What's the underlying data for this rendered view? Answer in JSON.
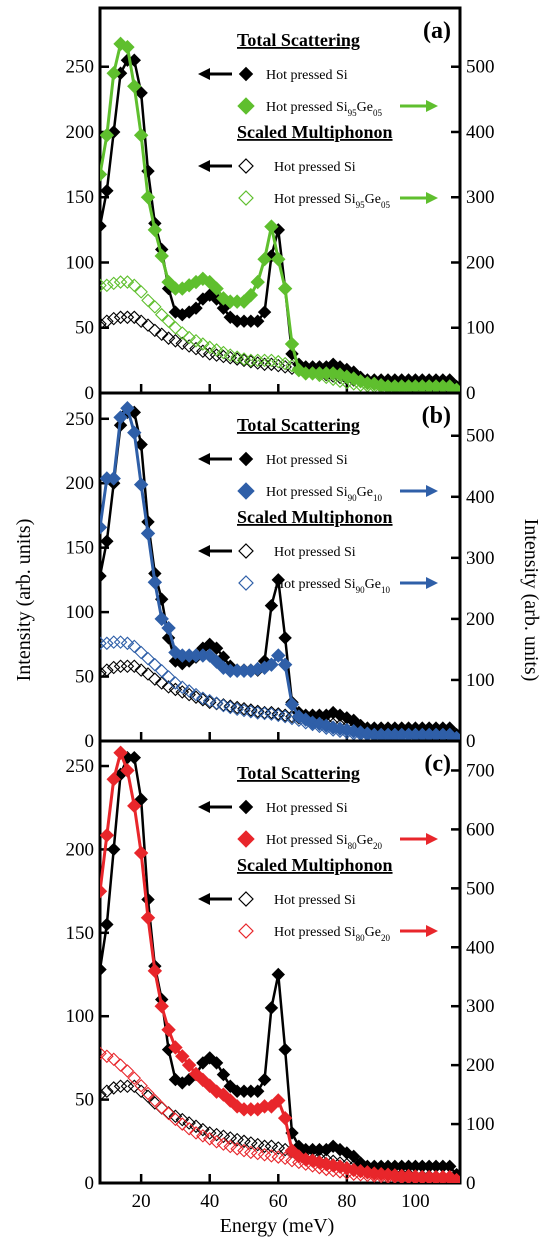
{
  "chart_data": {
    "type": "line",
    "xlabel": "Energy (meV)",
    "ylabel_left": "Intensity (arb. units)",
    "ylabel_right": "Intensity (arb. units)",
    "xlim": [
      8,
      113
    ],
    "x_ticks": [
      20,
      40,
      60,
      80,
      100
    ],
    "shared_series": {
      "si_total": {
        "name": "Hot pressed Si",
        "x": [
          8,
          10,
          12,
          14,
          16,
          18,
          20,
          22,
          24,
          26,
          28,
          30,
          32,
          34,
          36,
          38,
          40,
          42,
          44,
          46,
          48,
          50,
          52,
          54,
          56,
          58,
          60,
          62,
          64,
          66,
          68,
          70,
          72,
          74,
          76,
          78,
          80,
          82,
          84,
          86,
          88,
          90,
          92,
          94,
          96,
          98,
          100,
          102,
          104,
          106,
          108,
          110,
          112
        ],
        "values": [
          128,
          155,
          200,
          245,
          255,
          255,
          230,
          170,
          130,
          110,
          80,
          62,
          60,
          62,
          65,
          72,
          75,
          72,
          65,
          58,
          55,
          55,
          55,
          55,
          62,
          105,
          125,
          80,
          30,
          22,
          20,
          20,
          20,
          20,
          22,
          20,
          18,
          16,
          12,
          10,
          10,
          10,
          10,
          10,
          10,
          10,
          10,
          10,
          10,
          10,
          10,
          10,
          5
        ]
      },
      "si_multiphonon": {
        "name": "Hot pressed Si",
        "x": [
          8,
          10,
          12,
          14,
          16,
          18,
          20,
          22,
          24,
          26,
          28,
          30,
          32,
          34,
          36,
          38,
          40,
          42,
          44,
          46,
          48,
          50,
          52,
          54,
          56,
          58,
          60,
          62,
          64,
          66,
          68,
          70,
          72,
          74,
          76,
          78,
          80,
          82,
          84,
          86,
          88,
          90,
          92,
          94,
          96,
          98,
          100,
          102,
          104,
          106,
          108,
          110,
          112
        ],
        "values": [
          53,
          55,
          57,
          58,
          58,
          58,
          55,
          52,
          48,
          45,
          42,
          40,
          38,
          36,
          34,
          32,
          30,
          29,
          28,
          27,
          26,
          25,
          24,
          23,
          22,
          22,
          21,
          20,
          19,
          18,
          17,
          16,
          15,
          14,
          13,
          12,
          11,
          10,
          9,
          8,
          7,
          6,
          6,
          5,
          5,
          5,
          4,
          4,
          4,
          3,
          3,
          3,
          3
        ]
      }
    },
    "panels": [
      {
        "label": "(a)",
        "left_ylim": [
          0,
          295
        ],
        "right_ylim": [
          0,
          590
        ],
        "left_ticks": [
          0,
          50,
          100,
          150,
          200,
          250
        ],
        "right_ticks": [
          0,
          100,
          200,
          300,
          400,
          500
        ],
        "alloy_color": "#5fbf2e",
        "legend": {
          "total_heading": "Total Scattering",
          "multi_heading": "Scaled Multiphonon",
          "si_label": "Hot pressed Si",
          "alloy_prefix": "Hot pressed Si",
          "alloy_si_sub": "95",
          "alloy_ge": "Ge",
          "alloy_ge_sub": "05"
        },
        "alloy_total": {
          "x": [
            8,
            10,
            12,
            14,
            16,
            18,
            20,
            22,
            24,
            26,
            28,
            30,
            32,
            34,
            36,
            38,
            40,
            42,
            44,
            46,
            48,
            50,
            52,
            54,
            56,
            58,
            60,
            62,
            64,
            66,
            68,
            70,
            72,
            74,
            76,
            78,
            80,
            82,
            84,
            86,
            88,
            90,
            92,
            94,
            96,
            98,
            100,
            102,
            104,
            106,
            108,
            110,
            112
          ],
          "values": [
            335,
            395,
            490,
            535,
            530,
            470,
            395,
            300,
            250,
            210,
            170,
            160,
            160,
            165,
            170,
            175,
            170,
            160,
            145,
            140,
            140,
            140,
            150,
            170,
            205,
            255,
            205,
            160,
            75,
            35,
            30,
            30,
            30,
            30,
            30,
            28,
            25,
            22,
            18,
            15,
            14,
            12,
            10,
            10,
            10,
            10,
            10,
            10,
            10,
            10,
            10,
            10,
            5
          ]
        },
        "alloy_multiphonon": {
          "x": [
            8,
            10,
            12,
            14,
            16,
            18,
            20,
            22,
            24,
            26,
            28,
            30,
            32,
            34,
            36,
            38,
            40,
            42,
            44,
            46,
            48,
            50,
            52,
            54,
            56,
            58,
            60,
            62,
            64,
            66,
            68,
            70,
            72,
            74,
            76,
            78,
            80,
            82,
            84,
            86,
            88,
            90,
            92,
            94,
            96,
            98,
            100,
            102,
            104,
            106,
            108,
            110,
            112
          ],
          "values": [
            165,
            165,
            168,
            170,
            170,
            165,
            155,
            142,
            132,
            120,
            110,
            100,
            92,
            85,
            80,
            75,
            70,
            66,
            62,
            58,
            55,
            52,
            50,
            50,
            50,
            50,
            48,
            45,
            42,
            38,
            34,
            30,
            27,
            24,
            21,
            18,
            16,
            14,
            12,
            11,
            10,
            9,
            8,
            8,
            7,
            7,
            6,
            6,
            5,
            5,
            5,
            5,
            5
          ]
        }
      },
      {
        "label": "(b)",
        "left_ylim": [
          0,
          270
        ],
        "right_ylim": [
          0,
          570
        ],
        "left_ticks": [
          0,
          50,
          100,
          150,
          200,
          250
        ],
        "right_ticks": [
          0,
          100,
          200,
          300,
          400,
          500
        ],
        "alloy_color": "#2f5fa8",
        "legend": {
          "total_heading": "Total Scattering",
          "multi_heading": "Scaled Multiphonon",
          "si_label": "Hot pressed Si",
          "alloy_prefix": "Hot pressed Si",
          "alloy_si_sub": "90",
          "alloy_ge": "Ge",
          "alloy_ge_sub": "10"
        },
        "alloy_total": {
          "x": [
            8,
            10,
            12,
            14,
            16,
            18,
            20,
            22,
            24,
            26,
            28,
            30,
            32,
            34,
            36,
            38,
            40,
            42,
            44,
            46,
            48,
            50,
            52,
            54,
            56,
            58,
            60,
            62,
            64,
            66,
            68,
            70,
            72,
            74,
            76,
            78,
            80,
            82,
            84,
            86,
            88,
            90,
            92,
            94,
            96,
            98,
            100,
            102,
            104,
            106,
            108,
            110,
            112
          ],
          "values": [
            350,
            430,
            430,
            530,
            545,
            505,
            420,
            340,
            260,
            200,
            185,
            145,
            140,
            140,
            140,
            140,
            140,
            130,
            120,
            115,
            115,
            115,
            115,
            118,
            120,
            125,
            140,
            125,
            60,
            40,
            35,
            30,
            28,
            25,
            22,
            20,
            18,
            16,
            14,
            12,
            10,
            10,
            10,
            10,
            10,
            10,
            10,
            10,
            10,
            10,
            10,
            10,
            5
          ]
        },
        "alloy_multiphonon": {
          "x": [
            8,
            10,
            12,
            14,
            16,
            18,
            20,
            22,
            24,
            26,
            28,
            30,
            32,
            34,
            36,
            38,
            40,
            42,
            44,
            46,
            48,
            50,
            52,
            54,
            56,
            58,
            60,
            62,
            64,
            66,
            68,
            70,
            72,
            74,
            76,
            78,
            80,
            82,
            84,
            86,
            88,
            90,
            92,
            94,
            96,
            98,
            100,
            102,
            104,
            106,
            108,
            110,
            112
          ],
          "values": [
            160,
            160,
            162,
            162,
            160,
            155,
            145,
            135,
            125,
            115,
            105,
            95,
            88,
            82,
            76,
            70,
            66,
            62,
            58,
            55,
            52,
            50,
            48,
            46,
            45,
            44,
            42,
            40,
            37,
            34,
            30,
            27,
            24,
            21,
            18,
            16,
            14,
            12,
            11,
            10,
            9,
            8,
            7,
            7,
            6,
            6,
            5,
            5,
            5,
            5,
            5,
            5,
            5
          ]
        }
      },
      {
        "label": "(c)",
        "left_ylim": [
          0,
          265
        ],
        "right_ylim": [
          0,
          750
        ],
        "left_ticks": [
          0,
          50,
          100,
          150,
          200,
          250
        ],
        "right_ticks": [
          0,
          100,
          200,
          300,
          400,
          500,
          600,
          700
        ],
        "alloy_color": "#e8262b",
        "legend": {
          "total_heading": "Total Scattering",
          "multi_heading": "Scaled Multiphonon",
          "si_label": "Hot pressed Si",
          "alloy_prefix": "Hot pressed Si",
          "alloy_si_sub": "80",
          "alloy_ge": "Ge",
          "alloy_ge_sub": "20"
        },
        "alloy_total": {
          "x": [
            8,
            10,
            12,
            14,
            16,
            18,
            20,
            22,
            24,
            26,
            28,
            30,
            32,
            34,
            36,
            38,
            40,
            42,
            44,
            46,
            48,
            50,
            52,
            54,
            56,
            58,
            60,
            62,
            64,
            66,
            68,
            70,
            72,
            74,
            76,
            78,
            80,
            82,
            84,
            86,
            88,
            90,
            92,
            94,
            96,
            98,
            100,
            102,
            104,
            106,
            108,
            110,
            112
          ],
          "values": [
            495,
            590,
            685,
            730,
            700,
            640,
            560,
            450,
            360,
            300,
            260,
            230,
            215,
            200,
            185,
            175,
            165,
            155,
            150,
            140,
            130,
            125,
            125,
            125,
            130,
            130,
            140,
            110,
            55,
            45,
            40,
            38,
            35,
            32,
            30,
            28,
            25,
            22,
            20,
            18,
            16,
            15,
            14,
            13,
            12,
            12,
            11,
            10,
            10,
            10,
            10,
            10,
            5
          ]
        },
        "alloy_multiphonon": {
          "x": [
            8,
            10,
            12,
            14,
            16,
            18,
            20,
            22,
            24,
            26,
            28,
            30,
            32,
            34,
            36,
            38,
            40,
            42,
            44,
            46,
            48,
            50,
            52,
            54,
            56,
            58,
            60,
            62,
            64,
            66,
            68,
            70,
            72,
            74,
            76,
            78,
            80,
            82,
            84,
            86,
            88,
            90,
            92,
            94,
            96,
            98,
            100,
            102,
            104,
            106,
            108,
            110,
            112
          ],
          "values": [
            220,
            215,
            210,
            200,
            190,
            178,
            165,
            152,
            140,
            128,
            118,
            108,
            100,
            92,
            85,
            80,
            75,
            70,
            66,
            62,
            58,
            55,
            52,
            50,
            48,
            46,
            44,
            42,
            38,
            35,
            32,
            29,
            26,
            23,
            21,
            19,
            17,
            15,
            14,
            13,
            12,
            11,
            10,
            10,
            9,
            9,
            8,
            8,
            8,
            7,
            7,
            7,
            7
          ]
        }
      }
    ]
  }
}
